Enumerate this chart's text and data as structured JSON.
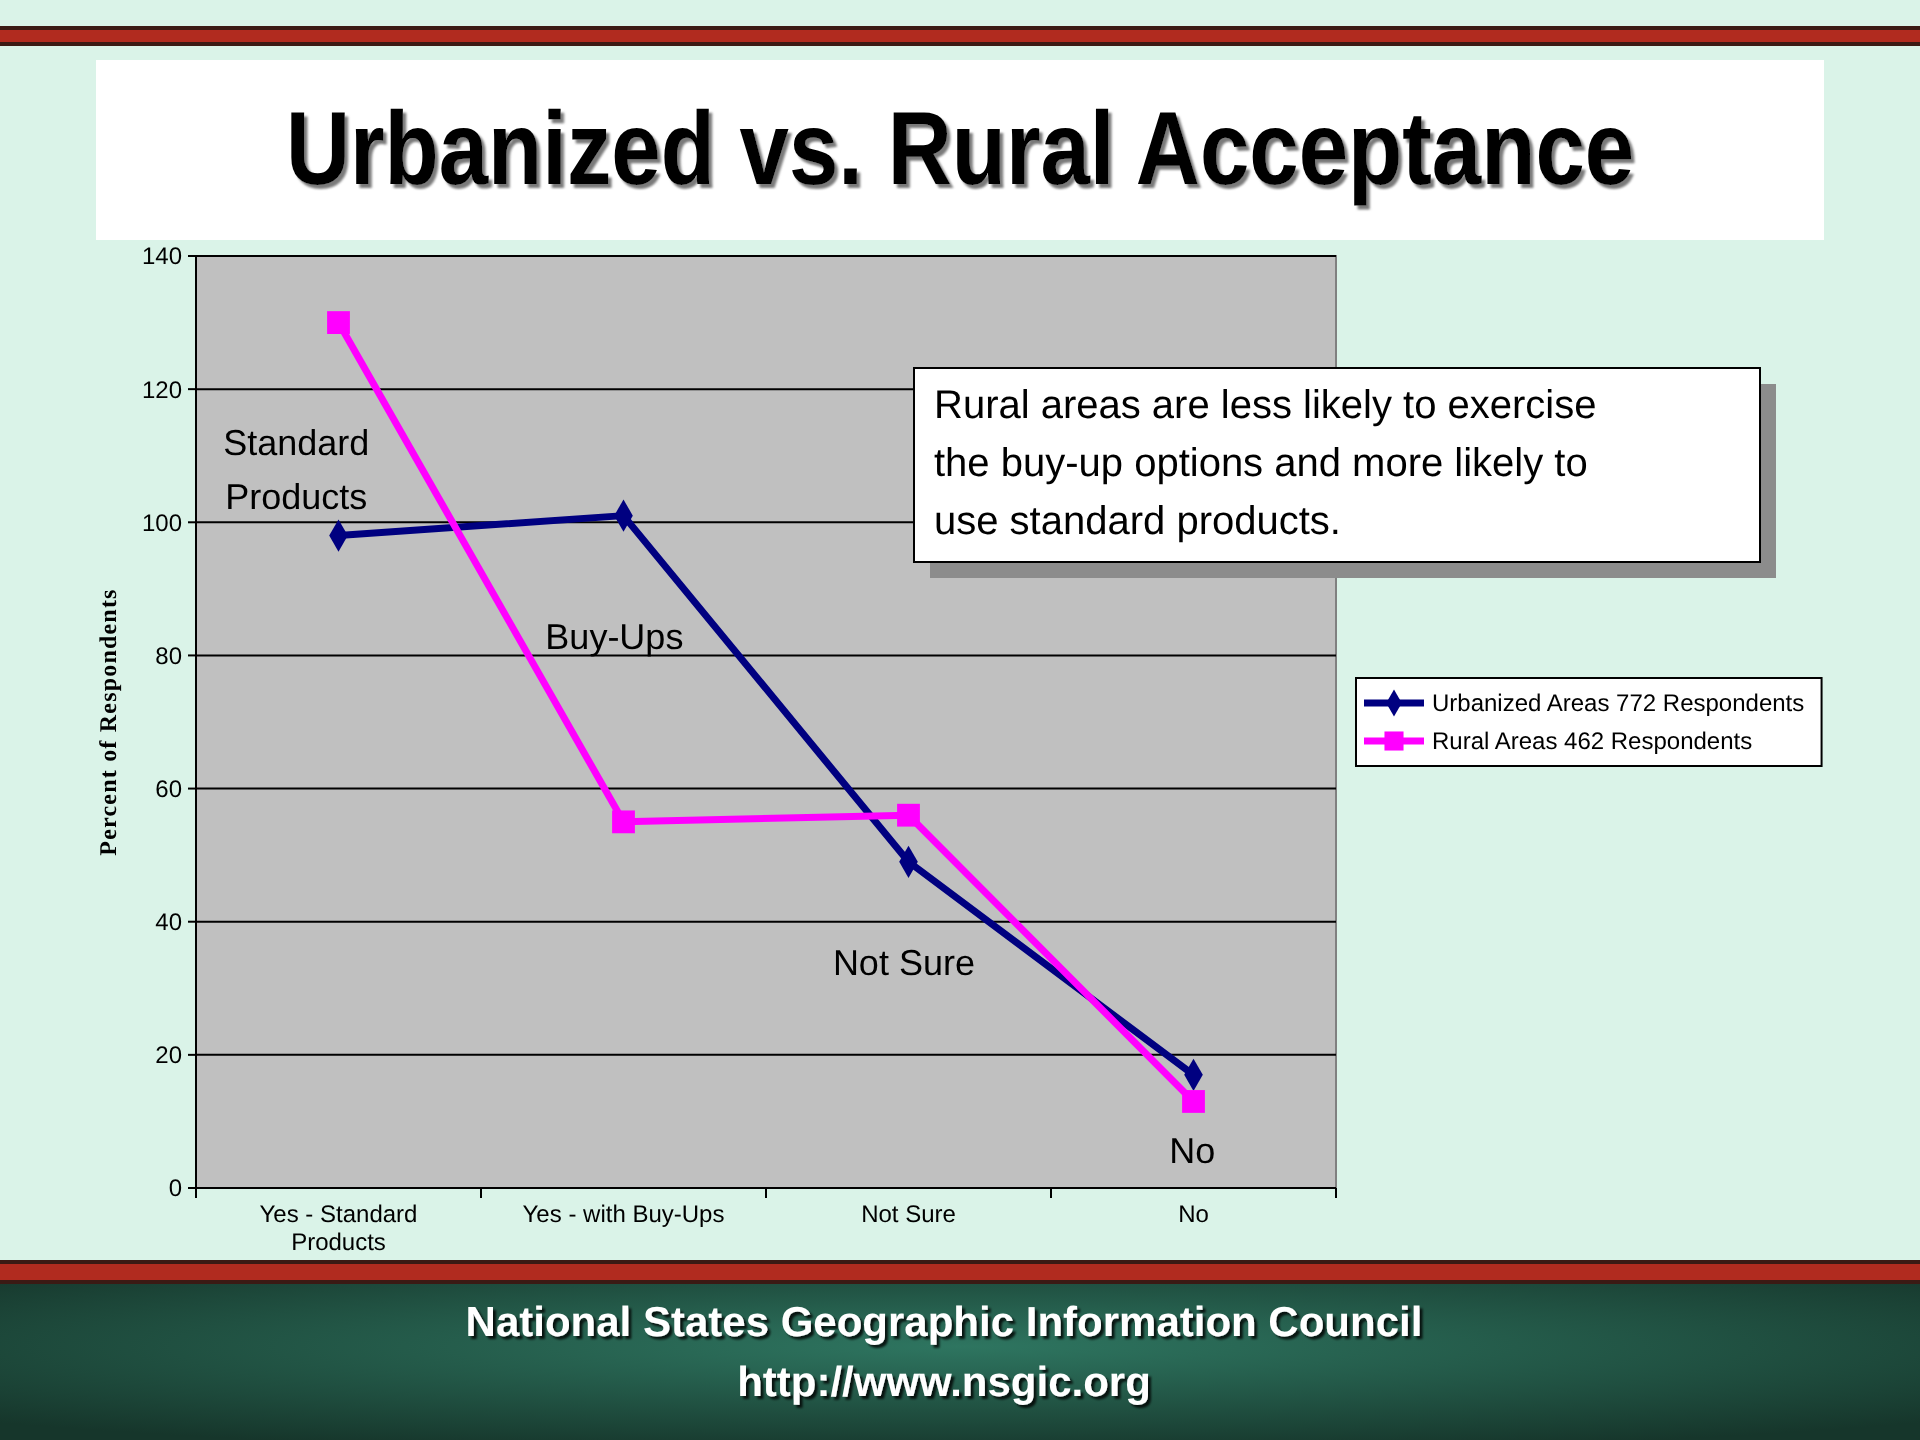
{
  "chart_data": {
    "type": "line",
    "title": "Urbanized vs. Rural Acceptance",
    "ylabel": "Percent of Respondents",
    "categories": [
      "Yes - Standard Products",
      "Yes - with Buy-Ups",
      "Not Sure",
      "No"
    ],
    "series": [
      {
        "name": "Urbanized Areas 772 Respondents",
        "color": "#000080",
        "marker": "diamond",
        "values": [
          98,
          101,
          49,
          17
        ]
      },
      {
        "name": "Rural Areas 462 Respondents",
        "color": "#ff00ff",
        "marker": "square",
        "values": [
          130,
          55,
          56,
          13
        ]
      }
    ],
    "ylim": [
      0,
      140
    ],
    "yticks": [
      0,
      20,
      40,
      60,
      80,
      100,
      120,
      140
    ],
    "grid": "y",
    "legend": "right",
    "annotations": [
      "Standard Products",
      "Buy-Ups",
      "Not Sure",
      "No",
      "Rural areas are less likely to exercise the buy-up options and more likely to use standard products.",
      "National States Geographic Information Council",
      "http://www.nsgic.org"
    ]
  }
}
